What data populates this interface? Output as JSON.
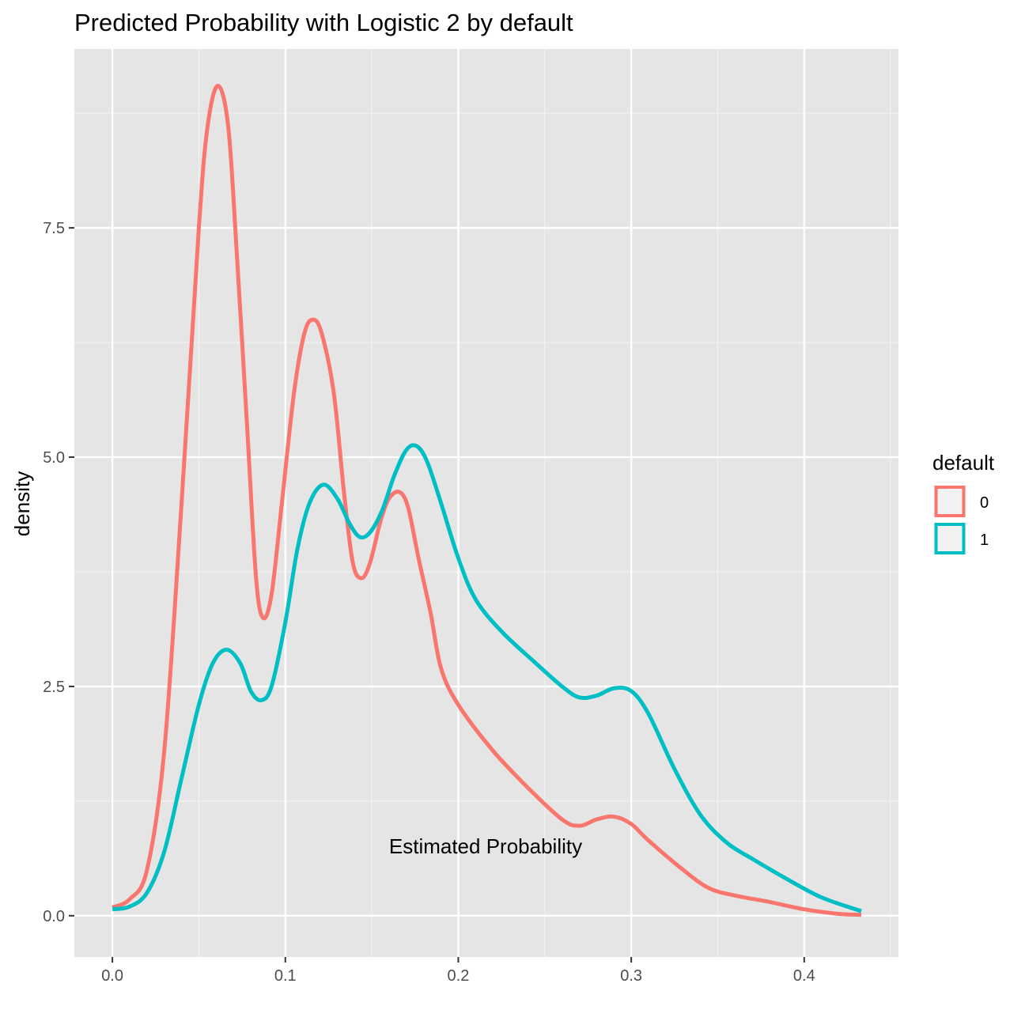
{
  "chart_data": {
    "type": "line",
    "title": "Predicted Probability with Logistic 2 by default",
    "xlabel": "Estimated Probability",
    "ylabel": "density",
    "xlim": [
      -0.022,
      0.4545
    ],
    "ylim": [
      -0.45,
      9.45
    ],
    "x_ticks": [
      0.0,
      0.1,
      0.2,
      0.3,
      0.4
    ],
    "x_tick_labels": [
      "0.0",
      "0.1",
      "0.2",
      "0.3",
      "0.4"
    ],
    "y_ticks": [
      0.0,
      2.5,
      5.0,
      7.5
    ],
    "y_tick_labels": [
      "0.0",
      "2.5",
      "5.0",
      "7.5"
    ],
    "grid": true,
    "legend": {
      "title": "default",
      "position": "right"
    },
    "series": [
      {
        "name": "0",
        "color": "#F8766D",
        "points": [
          [
            0.0,
            0.09
          ],
          [
            0.01,
            0.18
          ],
          [
            0.02,
            0.5
          ],
          [
            0.03,
            1.8
          ],
          [
            0.04,
            4.5
          ],
          [
            0.05,
            7.5
          ],
          [
            0.055,
            8.6
          ],
          [
            0.061,
            9.05
          ],
          [
            0.067,
            8.6
          ],
          [
            0.072,
            7.2
          ],
          [
            0.078,
            5.3
          ],
          [
            0.083,
            3.7
          ],
          [
            0.087,
            3.25
          ],
          [
            0.092,
            3.5
          ],
          [
            0.098,
            4.5
          ],
          [
            0.105,
            5.7
          ],
          [
            0.111,
            6.35
          ],
          [
            0.116,
            6.5
          ],
          [
            0.121,
            6.35
          ],
          [
            0.128,
            5.7
          ],
          [
            0.134,
            4.6
          ],
          [
            0.139,
            3.85
          ],
          [
            0.144,
            3.68
          ],
          [
            0.149,
            3.85
          ],
          [
            0.155,
            4.3
          ],
          [
            0.16,
            4.55
          ],
          [
            0.166,
            4.62
          ],
          [
            0.171,
            4.45
          ],
          [
            0.177,
            3.9
          ],
          [
            0.184,
            3.3
          ],
          [
            0.19,
            2.7
          ],
          [
            0.2,
            2.3
          ],
          [
            0.22,
            1.8
          ],
          [
            0.24,
            1.4
          ],
          [
            0.26,
            1.05
          ],
          [
            0.27,
            0.98
          ],
          [
            0.28,
            1.05
          ],
          [
            0.29,
            1.08
          ],
          [
            0.3,
            1.0
          ],
          [
            0.31,
            0.82
          ],
          [
            0.33,
            0.5
          ],
          [
            0.345,
            0.3
          ],
          [
            0.36,
            0.22
          ],
          [
            0.38,
            0.15
          ],
          [
            0.4,
            0.07
          ],
          [
            0.42,
            0.02
          ],
          [
            0.433,
            0.01
          ]
        ]
      },
      {
        "name": "1",
        "color": "#00BFC4",
        "points": [
          [
            0.0,
            0.07
          ],
          [
            0.01,
            0.1
          ],
          [
            0.02,
            0.25
          ],
          [
            0.03,
            0.7
          ],
          [
            0.04,
            1.5
          ],
          [
            0.05,
            2.3
          ],
          [
            0.058,
            2.75
          ],
          [
            0.066,
            2.9
          ],
          [
            0.074,
            2.75
          ],
          [
            0.08,
            2.45
          ],
          [
            0.086,
            2.35
          ],
          [
            0.092,
            2.5
          ],
          [
            0.1,
            3.2
          ],
          [
            0.107,
            4.0
          ],
          [
            0.114,
            4.5
          ],
          [
            0.122,
            4.7
          ],
          [
            0.13,
            4.55
          ],
          [
            0.137,
            4.28
          ],
          [
            0.143,
            4.13
          ],
          [
            0.149,
            4.18
          ],
          [
            0.156,
            4.42
          ],
          [
            0.163,
            4.8
          ],
          [
            0.17,
            5.08
          ],
          [
            0.176,
            5.12
          ],
          [
            0.182,
            4.95
          ],
          [
            0.19,
            4.5
          ],
          [
            0.2,
            3.9
          ],
          [
            0.21,
            3.45
          ],
          [
            0.225,
            3.1
          ],
          [
            0.245,
            2.75
          ],
          [
            0.26,
            2.5
          ],
          [
            0.27,
            2.38
          ],
          [
            0.28,
            2.4
          ],
          [
            0.29,
            2.48
          ],
          [
            0.3,
            2.45
          ],
          [
            0.31,
            2.2
          ],
          [
            0.325,
            1.6
          ],
          [
            0.34,
            1.1
          ],
          [
            0.355,
            0.8
          ],
          [
            0.37,
            0.62
          ],
          [
            0.39,
            0.4
          ],
          [
            0.41,
            0.2
          ],
          [
            0.433,
            0.05
          ]
        ]
      }
    ]
  }
}
